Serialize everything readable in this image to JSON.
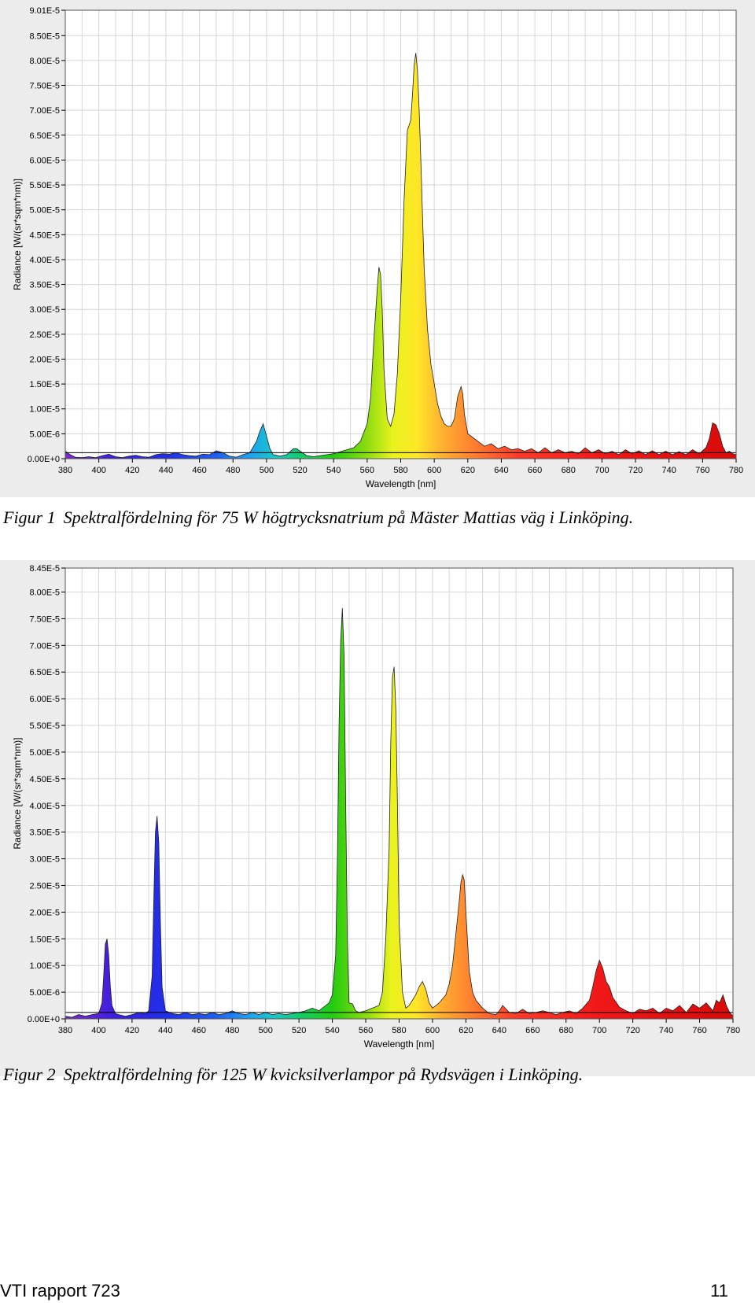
{
  "chart_data": [
    {
      "type": "area",
      "xlabel": "Wavelength [nm]",
      "ylabel": "Radiance [W/(sr*sqm*nm)]",
      "xlim": [
        380,
        780
      ],
      "ylim": [
        0,
        9.01e-05
      ],
      "x_ticks": [
        "380",
        "400",
        "420",
        "440",
        "460",
        "480",
        "500",
        "520",
        "540",
        "560",
        "580",
        "600",
        "620",
        "640",
        "660",
        "680",
        "700",
        "720",
        "740",
        "760",
        "780"
      ],
      "y_ticks": [
        "0.00E+0",
        "5.00E-6",
        "1.00E-5",
        "1.50E-5",
        "2.00E-5",
        "2.50E-5",
        "3.00E-5",
        "3.50E-5",
        "4.00E-5",
        "4.50E-5",
        "5.00E-5",
        "5.50E-5",
        "6.00E-5",
        "6.50E-5",
        "7.00E-5",
        "7.50E-5",
        "8.00E-5",
        "8.50E-5",
        "9.01E-5"
      ],
      "grid": true,
      "fill": "spectral-gradient",
      "x": [
        380,
        383,
        386,
        390,
        394,
        398,
        402,
        406,
        410,
        414,
        418,
        422,
        426,
        430,
        434,
        438,
        442,
        446,
        450,
        454,
        458,
        462,
        466,
        470,
        474,
        478,
        482,
        486,
        490,
        494,
        496,
        498,
        500,
        502,
        504,
        508,
        512,
        516,
        518,
        520,
        524,
        528,
        532,
        536,
        540,
        544,
        548,
        552,
        556,
        560,
        562,
        564,
        566,
        567,
        568,
        569,
        570,
        572,
        574,
        576,
        578,
        580,
        582,
        584,
        585,
        586,
        587,
        588,
        589,
        590,
        591,
        592,
        593,
        594,
        596,
        598,
        600,
        602,
        604,
        606,
        608,
        610,
        612,
        614,
        616,
        617,
        618,
        620,
        622,
        626,
        630,
        634,
        638,
        642,
        646,
        650,
        654,
        658,
        662,
        666,
        670,
        674,
        678,
        682,
        686,
        690,
        694,
        698,
        702,
        706,
        710,
        714,
        718,
        722,
        726,
        730,
        734,
        738,
        742,
        746,
        750,
        754,
        758,
        762,
        764,
        766,
        768,
        770,
        772,
        774,
        776,
        778,
        780
      ],
      "y": [
        1.5e-06,
        8e-07,
        3e-07,
        2e-07,
        4e-07,
        2e-07,
        6e-07,
        9e-07,
        4e-07,
        2e-07,
        5e-07,
        7e-07,
        4e-07,
        3e-07,
        8e-07,
        1e-06,
        9e-07,
        1.2e-06,
        8e-07,
        6e-07,
        5e-07,
        9e-07,
        8e-07,
        1.6e-06,
        1.2e-06,
        5e-07,
        3e-07,
        8e-07,
        1.2e-06,
        3.5e-06,
        5.5e-06,
        7e-06,
        4.5e-06,
        2e-06,
        8e-07,
        5e-07,
        8e-07,
        2e-06,
        2e-06,
        1.5e-06,
        6e-07,
        4e-07,
        6e-07,
        8e-07,
        1e-06,
        1.4e-06,
        1.8e-06,
        2.2e-06,
        3.5e-06,
        7e-06,
        1.2e-05,
        2.4e-05,
        3.4e-05,
        3.85e-05,
        3.7e-05,
        3e-05,
        1.8e-05,
        8e-06,
        6.5e-06,
        9e-06,
        1.7e-05,
        3.2e-05,
        5.2e-05,
        6.6e-05,
        6.7e-05,
        6.8e-05,
        7.3e-05,
        7.9e-05,
        8.15e-05,
        7.8e-05,
        7e-05,
        6e-05,
        4.9e-05,
        3.8e-05,
        2.6e-05,
        1.9e-05,
        1.5e-05,
        1.1e-05,
        8.5e-06,
        7e-06,
        6.5e-06,
        6.5e-06,
        8e-06,
        1.25e-05,
        1.45e-05,
        1.3e-05,
        9e-06,
        5e-06,
        4.5e-06,
        3.5e-06,
        2.5e-06,
        3e-06,
        2e-06,
        2.5e-06,
        1.8e-06,
        2e-06,
        1.5e-06,
        2e-06,
        1.2e-06,
        2.2e-06,
        1.2e-06,
        1.8e-06,
        1.2e-06,
        1.5e-06,
        1e-06,
        2.2e-06,
        1.2e-06,
        1.8e-06,
        1e-06,
        1.5e-06,
        8e-07,
        1.8e-06,
        1e-06,
        1.6e-06,
        8e-07,
        1.6e-06,
        8e-07,
        1.5e-06,
        8e-07,
        1.4e-06,
        8e-07,
        1.8e-06,
        1e-06,
        2.2e-06,
        4e-06,
        7.2e-06,
        6.8e-06,
        5e-06,
        2.5e-06,
        1.2e-06,
        1.5e-06,
        1e-06,
        8e-07
      ]
    },
    {
      "type": "area",
      "xlabel": "Wavelength [nm]",
      "ylabel": "Radiance [W/(sr*sqm*nm)]",
      "xlim": [
        380,
        780
      ],
      "ylim": [
        0,
        8.45e-05
      ],
      "x_ticks": [
        "380",
        "400",
        "420",
        "440",
        "460",
        "480",
        "500",
        "520",
        "540",
        "560",
        "580",
        "600",
        "620",
        "640",
        "660",
        "680",
        "700",
        "720",
        "740",
        "760",
        "780"
      ],
      "y_ticks": [
        "0.00E+0",
        "5.00E-6",
        "1.00E-5",
        "1.50E-5",
        "2.00E-5",
        "2.50E-5",
        "3.00E-5",
        "3.50E-5",
        "4.00E-5",
        "4.50E-5",
        "5.00E-5",
        "5.50E-5",
        "6.00E-5",
        "6.50E-5",
        "7.00E-5",
        "7.50E-5",
        "8.00E-5",
        "8.45E-5"
      ],
      "grid": true,
      "fill": "spectral-gradient",
      "x": [
        380,
        384,
        388,
        392,
        396,
        400,
        402,
        403,
        404,
        405,
        406,
        407,
        408,
        410,
        412,
        416,
        420,
        424,
        428,
        430,
        432,
        433,
        434,
        435,
        436,
        437,
        438,
        440,
        444,
        448,
        452,
        456,
        460,
        464,
        468,
        472,
        476,
        480,
        484,
        488,
        492,
        496,
        500,
        504,
        508,
        512,
        516,
        520,
        524,
        528,
        532,
        536,
        538,
        540,
        542,
        543,
        544,
        545,
        546,
        547,
        548,
        549,
        550,
        552,
        554,
        556,
        560,
        564,
        568,
        570,
        572,
        574,
        575,
        576,
        577,
        578,
        579,
        580,
        582,
        584,
        586,
        590,
        592,
        594,
        596,
        598,
        600,
        604,
        608,
        610,
        612,
        614,
        616,
        617,
        618,
        619,
        620,
        622,
        624,
        626,
        630,
        634,
        638,
        640,
        642,
        646,
        650,
        654,
        658,
        662,
        666,
        670,
        674,
        678,
        682,
        686,
        690,
        694,
        696,
        698,
        700,
        702,
        704,
        706,
        708,
        712,
        716,
        720,
        724,
        728,
        732,
        736,
        740,
        744,
        748,
        752,
        756,
        760,
        764,
        768,
        770,
        772,
        774,
        776,
        778,
        780
      ],
      "y": [
        5e-07,
        3e-07,
        8e-07,
        5e-07,
        8e-07,
        1e-06,
        3e-06,
        8e-06,
        1.4e-05,
        1.5e-05,
        1.2e-05,
        6e-06,
        2.5e-06,
        1e-06,
        8e-07,
        5e-07,
        8e-07,
        1.2e-06,
        1e-06,
        1.5e-06,
        8e-06,
        2.2e-05,
        3.5e-05,
        3.8e-05,
        3.3e-05,
        1.8e-05,
        6e-06,
        1.5e-06,
        1e-06,
        8e-07,
        1.2e-06,
        8e-07,
        1e-06,
        8e-07,
        1.2e-06,
        8e-07,
        1e-06,
        1.5e-06,
        1e-06,
        8e-07,
        1.2e-06,
        8e-07,
        1.2e-06,
        8e-07,
        1e-06,
        8e-07,
        1e-06,
        1.2e-06,
        1.5e-06,
        2e-06,
        1.5e-06,
        2.5e-06,
        3e-06,
        4.5e-06,
        1.2e-05,
        3e-05,
        5.5e-05,
        7.1e-05,
        7.7e-05,
        6.8e-05,
        4e-05,
        1.5e-05,
        3e-06,
        2.8e-06,
        1.5e-06,
        1.2e-06,
        1.5e-06,
        2e-06,
        2.5e-06,
        5e-06,
        1.5e-05,
        3.2e-05,
        5.2e-05,
        6.4e-05,
        6.6e-05,
        5.8e-05,
        4e-05,
        1.8e-05,
        5e-06,
        2e-06,
        2.5e-06,
        4.5e-06,
        6e-06,
        7e-06,
        5.5e-06,
        3e-06,
        2e-06,
        3e-06,
        4.5e-06,
        6.5e-06,
        1e-05,
        1.6e-05,
        2.2e-05,
        2.55e-05,
        2.7e-05,
        2.6e-05,
        2e-05,
        9e-06,
        5e-06,
        3.5e-06,
        2e-06,
        1e-06,
        8e-07,
        1.5e-06,
        2.5e-06,
        1.2e-06,
        1e-06,
        1.8e-06,
        1e-06,
        1.2e-06,
        1.5e-06,
        1.2e-06,
        8e-07,
        1.2e-06,
        1.5e-06,
        1e-06,
        2e-06,
        3.5e-06,
        6e-06,
        9e-06,
        1.1e-05,
        9.5e-06,
        7e-06,
        6e-06,
        4e-06,
        2.2e-06,
        1.5e-06,
        1e-06,
        1.8e-06,
        1.5e-06,
        2e-06,
        1e-06,
        2e-06,
        1.5e-06,
        2.5e-06,
        1.2e-06,
        2.8e-06,
        2e-06,
        3e-06,
        1.5e-06,
        3.5e-06,
        3e-06,
        4.5e-06,
        2.5e-06,
        1.2e-06,
        5e-07
      ]
    }
  ],
  "captions": [
    {
      "number": "Figur 1",
      "text": "Spektralfördelning för 75 W högtrycksnatrium på Mäster Mattias väg i Linköping."
    },
    {
      "number": "Figur 2",
      "text": "Spektralfördelning för 125 W kvicksilverlampor på Rydsvägen i Linköping."
    }
  ],
  "footer": {
    "report": "VTI rapport 723",
    "page": "11"
  }
}
